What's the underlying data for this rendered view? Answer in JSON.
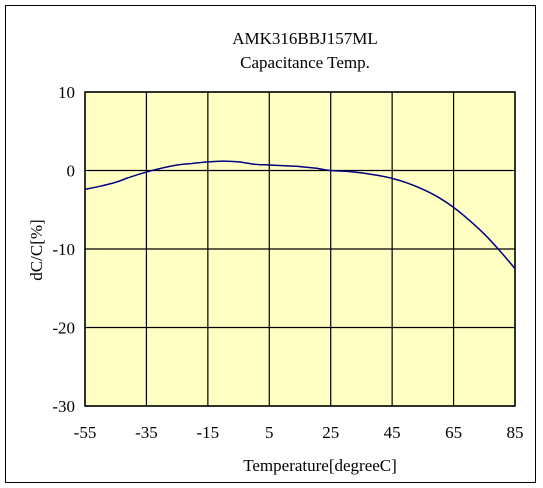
{
  "chart_data": {
    "type": "line",
    "title": "AMK316BBJ157ML",
    "subtitle": "Capacitance Temp.",
    "xlabel": "Temperature[degreeC]",
    "ylabel": "dC/C[%]",
    "xlim": [
      -55,
      85
    ],
    "ylim": [
      -30,
      10
    ],
    "xticks": [
      -55,
      -35,
      -15,
      5,
      25,
      45,
      65,
      85
    ],
    "yticks": [
      10,
      0,
      -10,
      -20,
      -30
    ],
    "grid": true,
    "plot_background": "#FFFFC4",
    "line_color": "#000080",
    "series": [
      {
        "x": [
          -55,
          -50,
          -45,
          -40,
          -35,
          -30,
          -25,
          -20,
          -15,
          -10,
          -5,
          0,
          5,
          10,
          15,
          20,
          25,
          30,
          35,
          40,
          45,
          50,
          55,
          60,
          65,
          70,
          75,
          80,
          85
        ],
        "y": [
          -2.4,
          -2.0,
          -1.5,
          -0.8,
          -0.2,
          0.3,
          0.7,
          0.9,
          1.1,
          1.2,
          1.1,
          0.8,
          0.7,
          0.6,
          0.5,
          0.3,
          0.0,
          -0.1,
          -0.3,
          -0.6,
          -1.0,
          -1.6,
          -2.4,
          -3.4,
          -4.7,
          -6.3,
          -8.1,
          -10.2,
          -12.5
        ]
      }
    ]
  }
}
